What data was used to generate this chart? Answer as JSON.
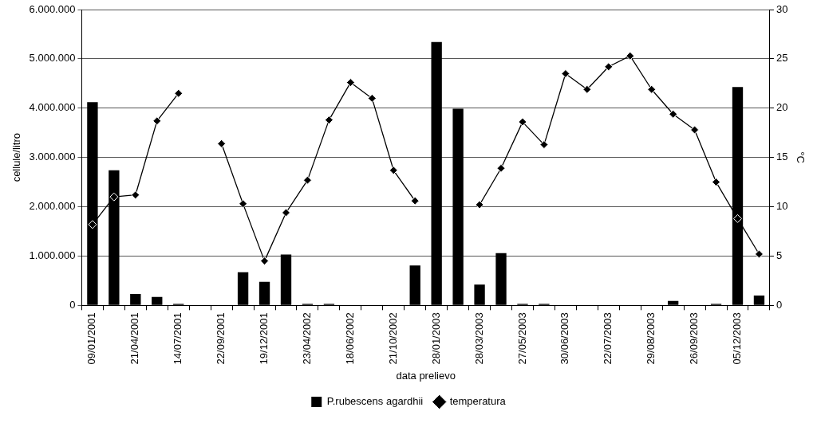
{
  "chart_data": {
    "type": "bar",
    "xlabel": "data prelievo",
    "ylabel": "cellule/litro",
    "y2label": "°C",
    "categories": [
      "09/01/2001",
      null,
      "21/04/2001",
      null,
      "14/07/2001",
      null,
      "22/09/2001",
      null,
      "19/12/2001",
      null,
      "23/04/2002",
      null,
      "18/06/2002",
      null,
      "21/10/2002",
      null,
      "28/01/2003",
      null,
      "28/03/2003",
      null,
      "27/05/2003",
      null,
      "30/06/2003",
      null,
      "22/07/2003",
      null,
      "29/08/2003",
      null,
      "26/09/2003",
      null,
      "05/12/2003",
      null
    ],
    "series": [
      {
        "name": "P.rubescens agardhii",
        "color": "#000000",
        "values": [
          4120000,
          2740000,
          230000,
          170000,
          30000,
          0,
          0,
          670000,
          480000,
          1030000,
          30000,
          30000,
          0,
          0,
          0,
          810000,
          5340000,
          3990000,
          420000,
          1060000,
          30000,
          30000,
          0,
          0,
          0,
          0,
          0,
          90000,
          0,
          30000,
          4430000,
          200000
        ]
      },
      {
        "name": "temperatura",
        "type": "line",
        "axis": "y2",
        "color": "#000000",
        "marker": "diamond",
        "values": [
          8.2,
          11.0,
          11.2,
          18.7,
          21.5,
          null,
          16.4,
          10.3,
          4.5,
          9.4,
          12.7,
          18.8,
          22.6,
          21.0,
          13.7,
          10.6,
          null,
          null,
          10.2,
          13.9,
          18.6,
          16.3,
          23.5,
          21.9,
          24.2,
          25.3,
          21.9,
          19.4,
          17.8,
          12.5,
          8.8,
          5.2
        ]
      }
    ],
    "ylim": [
      0,
      6000000
    ],
    "yticks": [
      {
        "value": 0,
        "label": "0"
      },
      {
        "value": 1000000,
        "label": "1.000.000"
      },
      {
        "value": 2000000,
        "label": "2.000.000"
      },
      {
        "value": 3000000,
        "label": "3.000.000"
      },
      {
        "value": 4000000,
        "label": "4.000.000"
      },
      {
        "value": 5000000,
        "label": "5.000.000"
      },
      {
        "value": 6000000,
        "label": "6.000.000"
      }
    ],
    "y2lim": [
      0,
      30
    ],
    "y2ticks": [
      0,
      5,
      10,
      15,
      20,
      25,
      30
    ],
    "grid": "y",
    "legend": "bottom",
    "line_style": "solid"
  }
}
